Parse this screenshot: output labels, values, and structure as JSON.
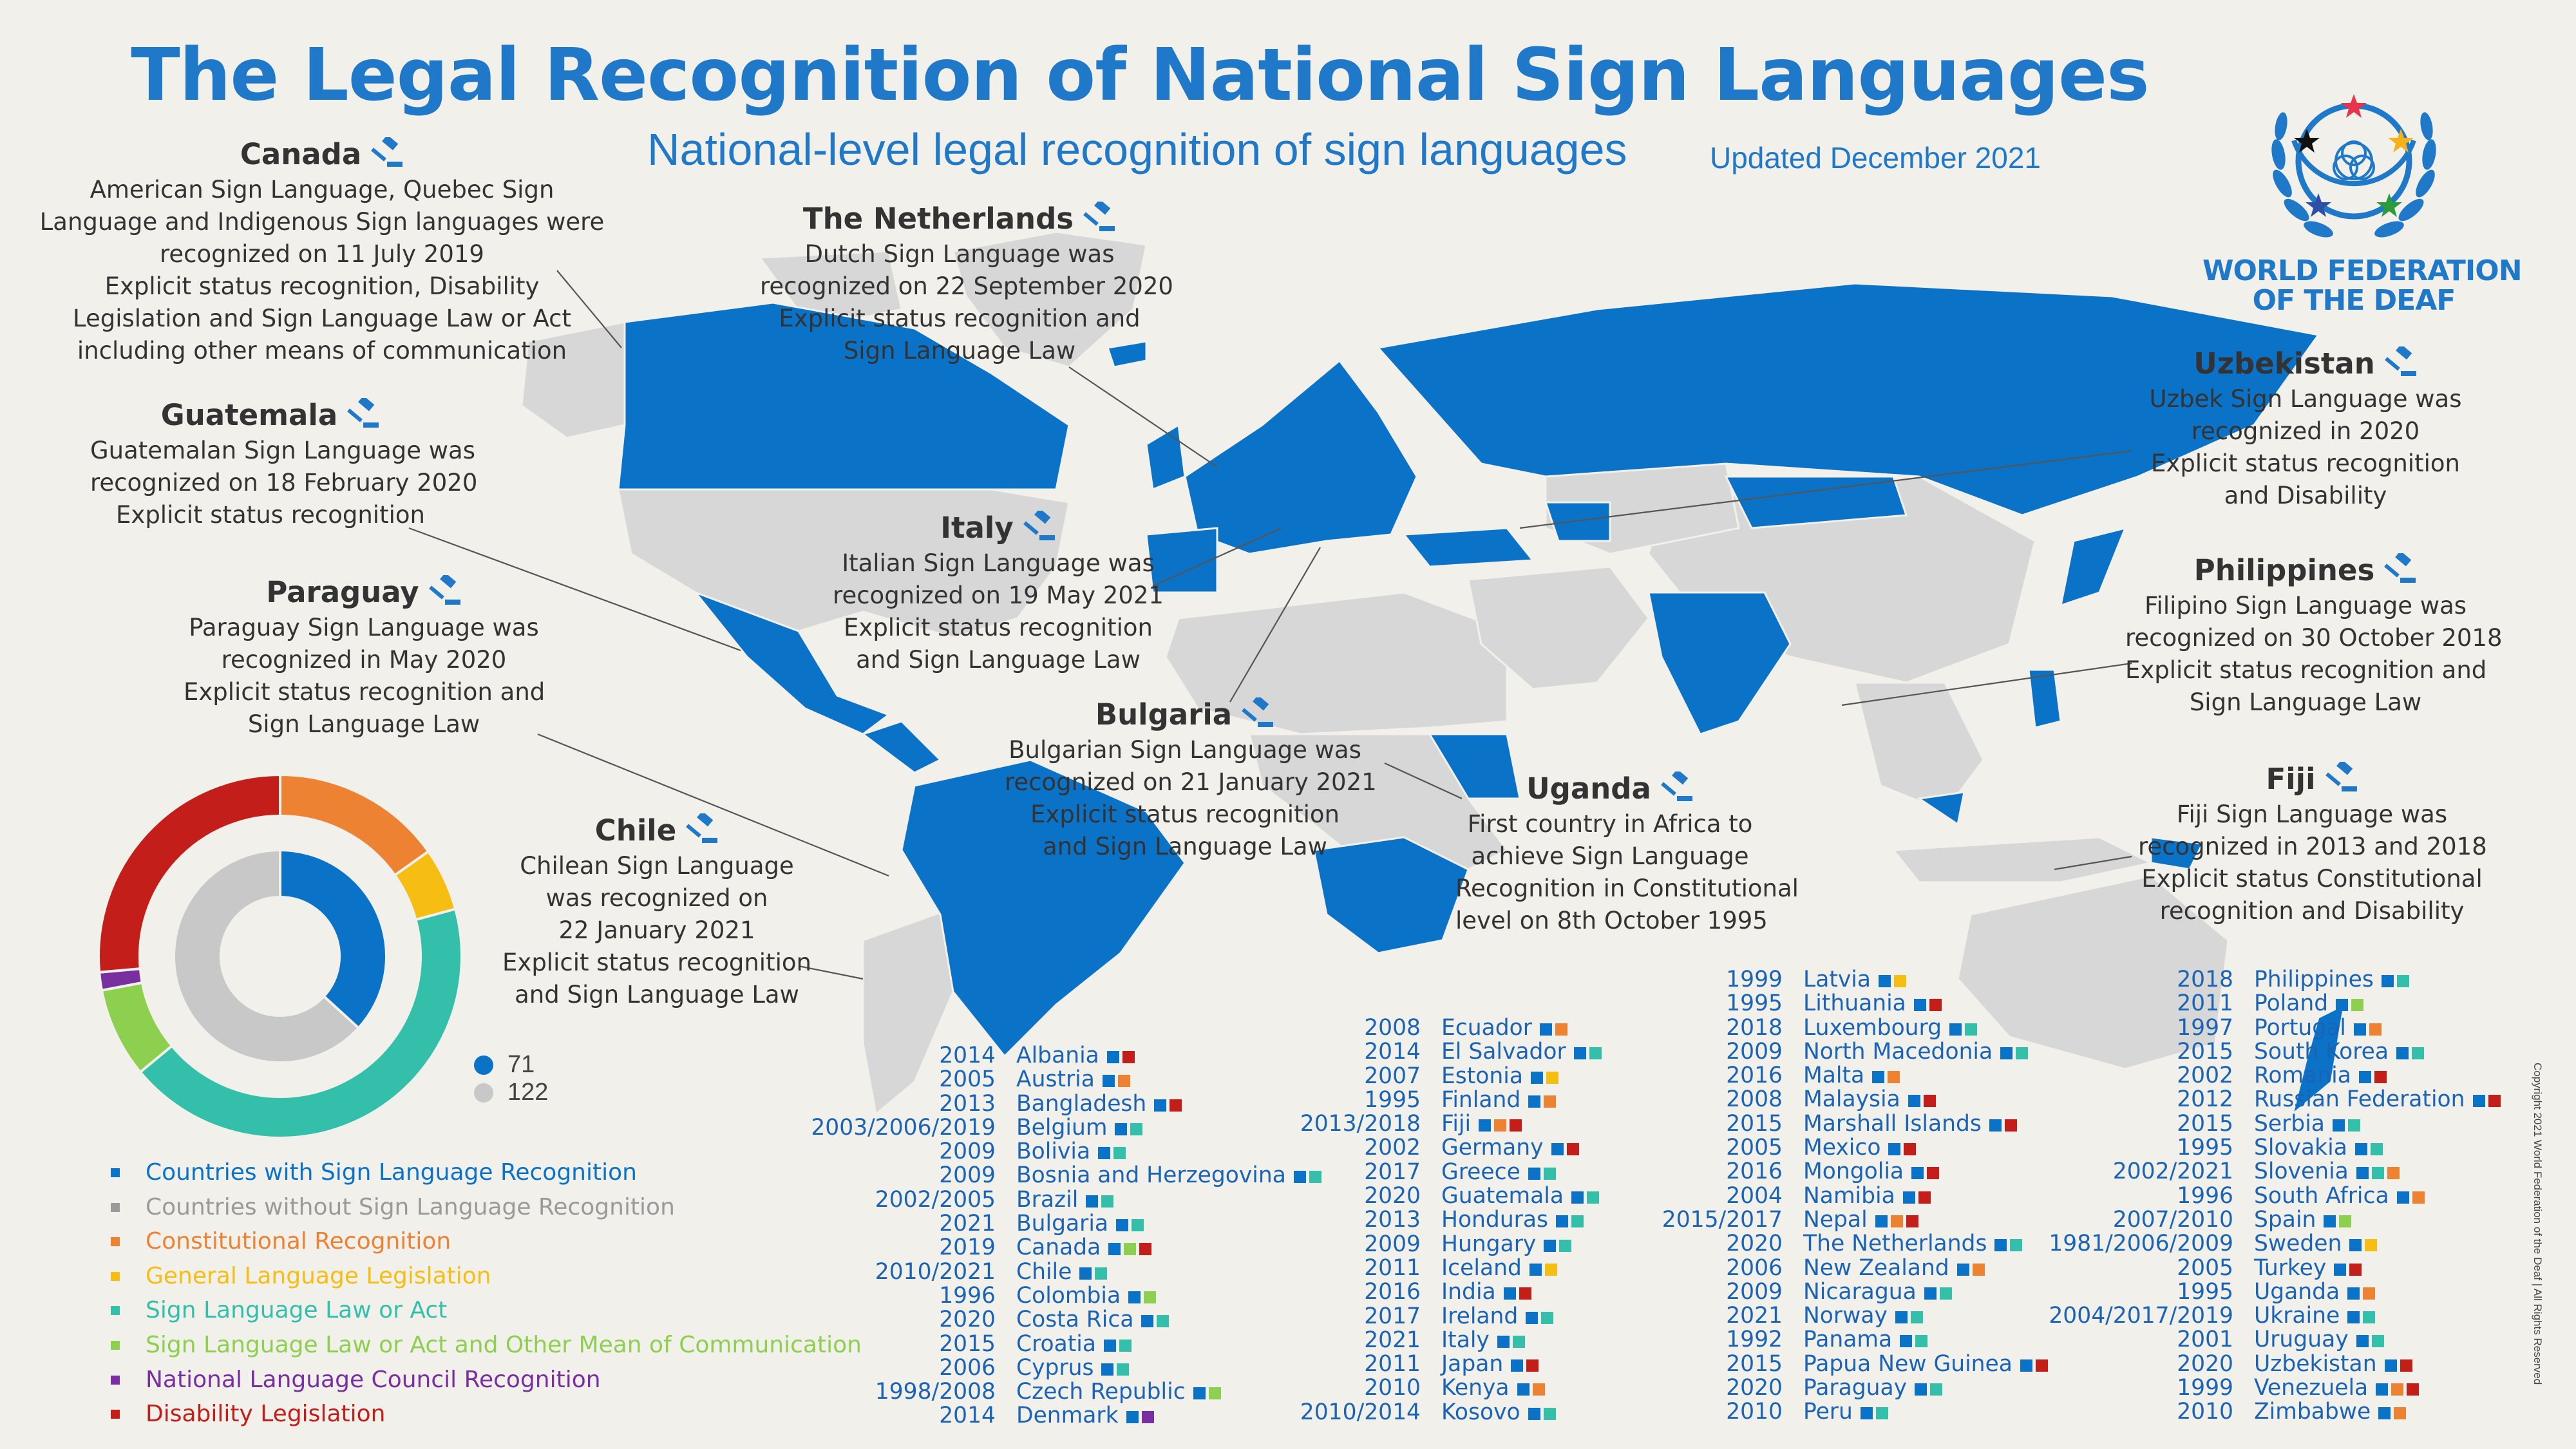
{
  "title": "The Legal Recognition of National Sign Languages",
  "subtitle": "National-level legal recognition of sign languages",
  "updated": "Updated December 2021",
  "logo": {
    "line1": "WORLD FEDERATION",
    "line2": "OF THE DEAF",
    "star_colors": [
      "#e8344a",
      "#f5b21c",
      "#2b9b3c",
      "#2c4fa8",
      "#111111"
    ]
  },
  "callouts": {
    "canada": {
      "title": "Canada",
      "lines": [
        "American Sign Language, Quebec Sign",
        "Language and Indigenous Sign languages were",
        "recognized on 11 July 2019",
        "Explicit status recognition, Disability",
        "Legislation and Sign Language Law or Act",
        "including other means of communication"
      ]
    },
    "guatemala": {
      "title": "Guatemala",
      "lines": [
        "Guatemalan Sign Language was",
        "recognized on 18 February 2020",
        "Explicit status recognition"
      ]
    },
    "paraguay": {
      "title": "Paraguay",
      "lines": [
        "Paraguay Sign Language was",
        "recognized in May 2020",
        "Explicit status recognition and",
        "Sign Language Law"
      ]
    },
    "chile": {
      "title": "Chile",
      "lines": [
        "Chilean Sign Language",
        "was recognized on",
        "22 January 2021",
        "Explicit status recognition",
        "and Sign Language Law"
      ]
    },
    "netherlands": {
      "title": "The Netherlands",
      "lines": [
        "Dutch Sign Language was",
        "recognized on 22 September 2020",
        "Explicit status recognition and",
        "Sign Language Law"
      ]
    },
    "italy": {
      "title": "Italy",
      "lines": [
        "Italian Sign Language was",
        "recognized on 19 May 2021",
        "Explicit status recognition",
        "and Sign Language Law"
      ]
    },
    "bulgaria": {
      "title": "Bulgaria",
      "lines": [
        "Bulgarian Sign Language was",
        "recognized on 21 January 2021",
        "Explicit status recognition",
        "and Sign Language Law"
      ]
    },
    "uganda": {
      "title": "Uganda",
      "lines": [
        "First country in Africa to",
        "achieve Sign Language",
        "Recognition in Constitutional",
        "level on 8th October 1995"
      ]
    },
    "uzbekistan": {
      "title": "Uzbekistan",
      "lines": [
        "Uzbek Sign Language was",
        "recognized in 2020",
        "Explicit status recognition",
        "and Disability"
      ]
    },
    "philippines": {
      "title": "Philippines",
      "lines": [
        "Filipino Sign Language was",
        "recognized on 30 October 2018",
        "Explicit status recognition and",
        "Sign Language Law"
      ]
    },
    "fiji": {
      "title": "Fiji",
      "lines": [
        "Fiji Sign Language was",
        "recognized in 2013 and 2018",
        "Explicit status Constitutional",
        "recognition and Disability"
      ]
    }
  },
  "legend": [
    {
      "label": "Countries with Sign Language Recognition",
      "color": "#0a72c7",
      "key": "R"
    },
    {
      "label": "Countries without Sign Language Recognition",
      "color": "#9a9a9a",
      "key": "N"
    },
    {
      "label": "Constitutional Recognition",
      "color": "#ee8233",
      "key": "C"
    },
    {
      "label": "General Language Legislation",
      "color": "#f6bd12",
      "key": "G"
    },
    {
      "label": "Sign Language Law or Act",
      "color": "#33bfaa",
      "key": "S"
    },
    {
      "label": "Sign Language Law or Act and Other Mean of Communication",
      "color": "#8dcf4e",
      "key": "O"
    },
    {
      "label": "National Language Council Recognition",
      "color": "#7a2fa0",
      "key": "L"
    },
    {
      "label": "Disability Legislation",
      "color": "#c41e1a",
      "key": "D"
    }
  ],
  "counts": {
    "recognized": "71",
    "not_recognized": "122"
  },
  "chart_data": {
    "type": "pie",
    "inner_ring": {
      "categories": [
        "Countries with Sign Language Recognition",
        "Countries without Sign Language Recognition"
      ],
      "values": [
        71,
        122
      ],
      "colors": [
        "#0a72c7",
        "#c8c8c8"
      ]
    },
    "outer_ring": {
      "categories": [
        "Constitutional Recognition",
        "General Language Legislation",
        "Sign Language Law or Act",
        "Sign Language Law or Act and Other Mean of Communication",
        "National Language Council Recognition",
        "Disability Legislation"
      ],
      "values": [
        19,
        7,
        54,
        10,
        2,
        33
      ],
      "colors": [
        "#ee8233",
        "#f6bd12",
        "#33bfaa",
        "#8dcf4e",
        "#7a2fa0",
        "#c41e1a"
      ]
    }
  },
  "countries": [
    [
      {
        "year": "2014",
        "name": "Albania",
        "marks": [
          "R",
          "D"
        ]
      },
      {
        "year": "2005",
        "name": "Austria",
        "marks": [
          "R",
          "C"
        ]
      },
      {
        "year": "2013",
        "name": "Bangladesh",
        "marks": [
          "R",
          "D"
        ]
      },
      {
        "year": "2003/2006/2019",
        "name": "Belgium",
        "marks": [
          "R",
          "S"
        ]
      },
      {
        "year": "2009",
        "name": "Bolivia",
        "marks": [
          "R",
          "S"
        ]
      },
      {
        "year": "2009",
        "name": "Bosnia and Herzegovina",
        "marks": [
          "R",
          "S"
        ]
      },
      {
        "year": "2002/2005",
        "name": "Brazil",
        "marks": [
          "R",
          "S"
        ]
      },
      {
        "year": "2021",
        "name": "Bulgaria",
        "marks": [
          "R",
          "S"
        ]
      },
      {
        "year": "2019",
        "name": "Canada",
        "marks": [
          "R",
          "O",
          "D"
        ]
      },
      {
        "year": "2010/2021",
        "name": "Chile",
        "marks": [
          "R",
          "S"
        ]
      },
      {
        "year": "1996",
        "name": "Colombia",
        "marks": [
          "R",
          "O"
        ]
      },
      {
        "year": "2020",
        "name": "Costa Rica",
        "marks": [
          "R",
          "S"
        ]
      },
      {
        "year": "2015",
        "name": "Croatia",
        "marks": [
          "R",
          "S"
        ]
      },
      {
        "year": "2006",
        "name": "Cyprus",
        "marks": [
          "R",
          "S"
        ]
      },
      {
        "year": "1998/2008",
        "name": "Czech Republic",
        "marks": [
          "R",
          "O"
        ]
      },
      {
        "year": "2014",
        "name": "Denmark",
        "marks": [
          "R",
          "L"
        ]
      }
    ],
    [
      {
        "year": "2008",
        "name": "Ecuador",
        "marks": [
          "R",
          "C"
        ]
      },
      {
        "year": "2014",
        "name": "El Salvador",
        "marks": [
          "R",
          "S"
        ]
      },
      {
        "year": "2007",
        "name": "Estonia",
        "marks": [
          "R",
          "G"
        ]
      },
      {
        "year": "1995",
        "name": "Finland",
        "marks": [
          "R",
          "C"
        ]
      },
      {
        "year": "2013/2018",
        "name": "Fiji",
        "marks": [
          "R",
          "C",
          "D"
        ]
      },
      {
        "year": "2002",
        "name": "Germany",
        "marks": [
          "R",
          "D"
        ]
      },
      {
        "year": "2017",
        "name": "Greece",
        "marks": [
          "R",
          "S"
        ]
      },
      {
        "year": "2020",
        "name": "Guatemala",
        "marks": [
          "R",
          "S"
        ]
      },
      {
        "year": "2013",
        "name": "Honduras",
        "marks": [
          "R",
          "S"
        ]
      },
      {
        "year": "2009",
        "name": "Hungary",
        "marks": [
          "R",
          "S"
        ]
      },
      {
        "year": "2011",
        "name": "Iceland",
        "marks": [
          "R",
          "G"
        ]
      },
      {
        "year": "2016",
        "name": "India",
        "marks": [
          "R",
          "D"
        ]
      },
      {
        "year": "2017",
        "name": "Ireland",
        "marks": [
          "R",
          "S"
        ]
      },
      {
        "year": "2021",
        "name": "Italy",
        "marks": [
          "R",
          "S"
        ]
      },
      {
        "year": "2011",
        "name": "Japan",
        "marks": [
          "R",
          "D"
        ]
      },
      {
        "year": "2010",
        "name": "Kenya",
        "marks": [
          "R",
          "C"
        ]
      },
      {
        "year": "2010/2014",
        "name": "Kosovo",
        "marks": [
          "R",
          "S"
        ]
      }
    ],
    [
      {
        "year": "1999",
        "name": "Latvia",
        "marks": [
          "R",
          "G"
        ]
      },
      {
        "year": "1995",
        "name": "Lithuania",
        "marks": [
          "R",
          "D"
        ]
      },
      {
        "year": "2018",
        "name": "Luxembourg",
        "marks": [
          "R",
          "S"
        ]
      },
      {
        "year": "2009",
        "name": "North Macedonia",
        "marks": [
          "R",
          "S"
        ]
      },
      {
        "year": "2016",
        "name": "Malta",
        "marks": [
          "R",
          "C"
        ]
      },
      {
        "year": "2008",
        "name": "Malaysia",
        "marks": [
          "R",
          "D"
        ]
      },
      {
        "year": "2015",
        "name": "Marshall Islands",
        "marks": [
          "R",
          "D"
        ]
      },
      {
        "year": "2005",
        "name": "Mexico",
        "marks": [
          "R",
          "D"
        ]
      },
      {
        "year": "2016",
        "name": "Mongolia",
        "marks": [
          "R",
          "D"
        ]
      },
      {
        "year": "2004",
        "name": "Namibia",
        "marks": [
          "R",
          "D"
        ]
      },
      {
        "year": "2015/2017",
        "name": "Nepal",
        "marks": [
          "R",
          "C",
          "D"
        ]
      },
      {
        "year": "2020",
        "name": "The Netherlands",
        "marks": [
          "R",
          "S"
        ]
      },
      {
        "year": "2006",
        "name": "New Zealand",
        "marks": [
          "R",
          "C"
        ]
      },
      {
        "year": "2009",
        "name": "Nicaragua",
        "marks": [
          "R",
          "S"
        ]
      },
      {
        "year": "2021",
        "name": "Norway",
        "marks": [
          "R",
          "S"
        ]
      },
      {
        "year": "1992",
        "name": "Panama",
        "marks": [
          "R",
          "S"
        ]
      },
      {
        "year": "2015",
        "name": "Papua New Guinea",
        "marks": [
          "R",
          "D"
        ]
      },
      {
        "year": "2020",
        "name": "Paraguay",
        "marks": [
          "R",
          "S"
        ]
      },
      {
        "year": "2010",
        "name": "Peru",
        "marks": [
          "R",
          "S"
        ]
      }
    ],
    [
      {
        "year": "2018",
        "name": "Philippines",
        "marks": [
          "R",
          "S"
        ]
      },
      {
        "year": "2011",
        "name": "Poland",
        "marks": [
          "R",
          "O"
        ]
      },
      {
        "year": "1997",
        "name": "Portugal",
        "marks": [
          "R",
          "C"
        ]
      },
      {
        "year": "2015",
        "name": "South Korea",
        "marks": [
          "R",
          "S"
        ]
      },
      {
        "year": "2002",
        "name": "Romania",
        "marks": [
          "R",
          "D"
        ]
      },
      {
        "year": "2012",
        "name": "Russian Federation",
        "marks": [
          "R",
          "D"
        ]
      },
      {
        "year": "2015",
        "name": "Serbia",
        "marks": [
          "R",
          "S"
        ]
      },
      {
        "year": "1995",
        "name": "Slovakia",
        "marks": [
          "R",
          "S"
        ]
      },
      {
        "year": "2002/2021",
        "name": "Slovenia",
        "marks": [
          "R",
          "S",
          "C"
        ]
      },
      {
        "year": "1996",
        "name": "South Africa",
        "marks": [
          "R",
          "C"
        ]
      },
      {
        "year": "2007/2010",
        "name": "Spain",
        "marks": [
          "R",
          "O"
        ]
      },
      {
        "year": "1981/2006/2009",
        "name": "Sweden",
        "marks": [
          "R",
          "G"
        ]
      },
      {
        "year": "2005",
        "name": "Turkey",
        "marks": [
          "R",
          "D"
        ]
      },
      {
        "year": "1995",
        "name": "Uganda",
        "marks": [
          "R",
          "C"
        ]
      },
      {
        "year": "2004/2017/2019",
        "name": "Ukraine",
        "marks": [
          "R",
          "S"
        ]
      },
      {
        "year": "2001",
        "name": "Uruguay",
        "marks": [
          "R",
          "S"
        ]
      },
      {
        "year": "2020",
        "name": "Uzbekistan",
        "marks": [
          "R",
          "D"
        ]
      },
      {
        "year": "1999",
        "name": "Venezuela",
        "marks": [
          "R",
          "C",
          "D"
        ]
      },
      {
        "year": "2010",
        "name": "Zimbabwe",
        "marks": [
          "R",
          "C"
        ]
      }
    ]
  ],
  "copyright": "Copyright 2021 World Federation of the Deaf | All Rights Reserved"
}
